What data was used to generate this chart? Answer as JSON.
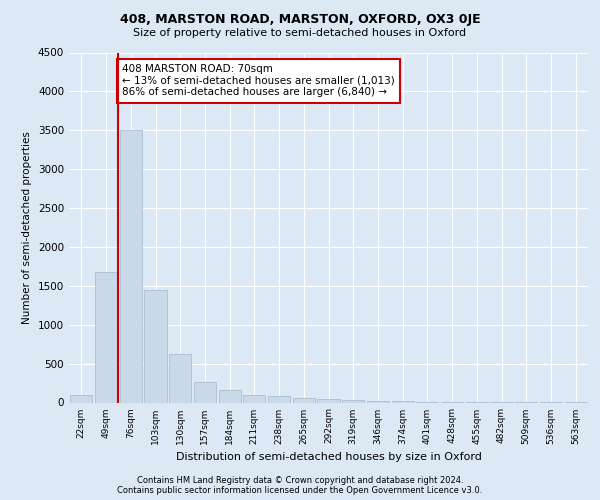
{
  "title1": "408, MARSTON ROAD, MARSTON, OXFORD, OX3 0JE",
  "title2": "Size of property relative to semi-detached houses in Oxford",
  "xlabel": "Distribution of semi-detached houses by size in Oxford",
  "ylabel": "Number of semi-detached properties",
  "bar_labels": [
    "22sqm",
    "49sqm",
    "76sqm",
    "103sqm",
    "130sqm",
    "157sqm",
    "184sqm",
    "211sqm",
    "238sqm",
    "265sqm",
    "292sqm",
    "319sqm",
    "346sqm",
    "374sqm",
    "401sqm",
    "428sqm",
    "455sqm",
    "482sqm",
    "509sqm",
    "536sqm",
    "563sqm"
  ],
  "bar_values": [
    100,
    1680,
    3500,
    1450,
    620,
    270,
    160,
    100,
    80,
    60,
    50,
    30,
    20,
    15,
    10,
    8,
    5,
    4,
    3,
    2,
    2
  ],
  "bar_color": "#c9d9e8",
  "bar_edge_color": "#a0b8cc",
  "highlight_color": "#cc0000",
  "annotation_text": "408 MARSTON ROAD: 70sqm\n← 13% of semi-detached houses are smaller (1,013)\n86% of semi-detached houses are larger (6,840) →",
  "annotation_box_color": "#ffffff",
  "annotation_box_edge": "#cc0000",
  "ylim": [
    0,
    4500
  ],
  "yticks": [
    0,
    500,
    1000,
    1500,
    2000,
    2500,
    3000,
    3500,
    4000,
    4500
  ],
  "footer1": "Contains HM Land Registry data © Crown copyright and database right 2024.",
  "footer2": "Contains public sector information licensed under the Open Government Licence v3.0.",
  "bg_color": "#dce9f5",
  "plot_bg_color": "#dce9f5"
}
